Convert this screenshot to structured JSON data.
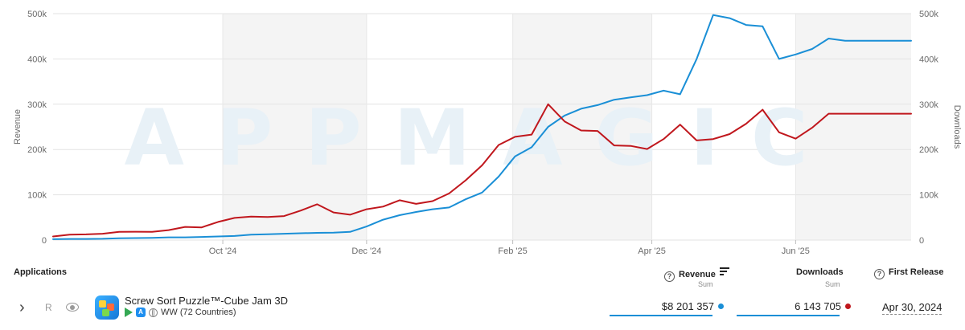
{
  "chart_data": {
    "type": "line",
    "watermark": "APPMAGIC",
    "ylabel_left": "Revenue",
    "ylabel_right": "Downloads",
    "ylim": [
      0,
      500000
    ],
    "ytick_labels_left": [
      "0",
      "100k",
      "200k",
      "300k",
      "400k",
      "500k"
    ],
    "ytick_labels_right": [
      "0",
      "100k",
      "200k",
      "300k",
      "400k",
      "500k"
    ],
    "ytick_values": [
      0,
      100000,
      200000,
      300000,
      400000,
      500000
    ],
    "xlim": [
      "2024-07-21",
      "2025-07-20"
    ],
    "xtick_labels": [
      "Oct '24",
      "Dec '24",
      "Feb '25",
      "Apr '25",
      "Jun '25"
    ],
    "xtick_dates": [
      "2024-10-01",
      "2024-12-01",
      "2025-02-01",
      "2025-04-01",
      "2025-06-01"
    ],
    "shaded_months": [
      [
        "2024-10-01",
        "2024-12-01"
      ],
      [
        "2025-02-01",
        "2025-04-01"
      ],
      [
        "2025-06-01",
        "2025-07-20"
      ]
    ],
    "grid": true,
    "x": [
      "2024-07-21",
      "2024-07-28",
      "2024-08-04",
      "2024-08-11",
      "2024-08-18",
      "2024-08-25",
      "2024-09-01",
      "2024-09-08",
      "2024-09-15",
      "2024-09-22",
      "2024-09-29",
      "2024-10-06",
      "2024-10-13",
      "2024-10-20",
      "2024-10-27",
      "2024-11-03",
      "2024-11-10",
      "2024-11-17",
      "2024-11-24",
      "2024-12-01",
      "2024-12-08",
      "2024-12-15",
      "2024-12-22",
      "2024-12-29",
      "2025-01-05",
      "2025-01-12",
      "2025-01-19",
      "2025-01-26",
      "2025-02-02",
      "2025-02-09",
      "2025-02-16",
      "2025-02-23",
      "2025-03-02",
      "2025-03-09",
      "2025-03-16",
      "2025-03-23",
      "2025-03-30",
      "2025-04-06",
      "2025-04-13",
      "2025-04-20",
      "2025-04-27",
      "2025-05-04",
      "2025-05-11",
      "2025-05-18",
      "2025-05-25",
      "2025-06-01",
      "2025-06-08",
      "2025-06-15",
      "2025-06-22",
      "2025-06-29",
      "2025-07-06",
      "2025-07-13",
      "2025-07-20"
    ],
    "series": [
      {
        "name": "Revenue",
        "axis": "left",
        "color": "#1a8fd6",
        "values": [
          2000,
          2500,
          2500,
          2800,
          4000,
          4500,
          5000,
          6000,
          6000,
          7000,
          8000,
          9000,
          12000,
          13000,
          14000,
          15000,
          16000,
          16500,
          18000,
          30000,
          45000,
          55000,
          62000,
          68000,
          72000,
          90000,
          105000,
          140000,
          185000,
          205000,
          250000,
          275000,
          290000,
          298000,
          310000,
          315000,
          320000,
          330000,
          322000,
          400000,
          497000,
          490000,
          475000,
          472000,
          400000,
          410000,
          422000,
          445000,
          440000,
          440000,
          440000,
          440000,
          440000
        ]
      },
      {
        "name": "Downloads",
        "axis": "right",
        "color": "#c0171d",
        "values": [
          8000,
          12000,
          12500,
          14000,
          18000,
          18500,
          18000,
          22000,
          29000,
          28000,
          40000,
          49000,
          52000,
          51000,
          53000,
          65000,
          79000,
          61000,
          56000,
          68000,
          74000,
          88000,
          80000,
          86000,
          103000,
          132000,
          165000,
          210000,
          228000,
          233000,
          300000,
          262000,
          242000,
          241000,
          209000,
          208000,
          201000,
          223000,
          255000,
          220000,
          223000,
          234000,
          257000,
          288000,
          238000,
          224000,
          248000,
          279000,
          279000,
          279000,
          279000,
          279000,
          279000
        ]
      }
    ]
  },
  "table": {
    "headers": {
      "applications": "Applications",
      "revenue": "Revenue",
      "revenue_sub": "Sum",
      "downloads": "Downloads",
      "downloads_sub": "Sum",
      "first_release": "First Release"
    },
    "help_glyph": "?",
    "row": {
      "chevron": "›",
      "r_label": "R",
      "app_name": "Screw Sort Puzzle™-Cube Jam 3D",
      "region": "WW (72 Countries)",
      "revenue": "$8 201 357",
      "downloads": "6 143 705",
      "first_release": "Apr 30, 2024",
      "revenue_dot_color": "#1a8fd6",
      "downloads_dot_color": "#c0171d"
    }
  },
  "icons": [
    "help-circle-icon",
    "sort-icon",
    "chevron-right-icon",
    "eye-icon",
    "google-play-icon",
    "app-store-icon",
    "globe-icon"
  ]
}
